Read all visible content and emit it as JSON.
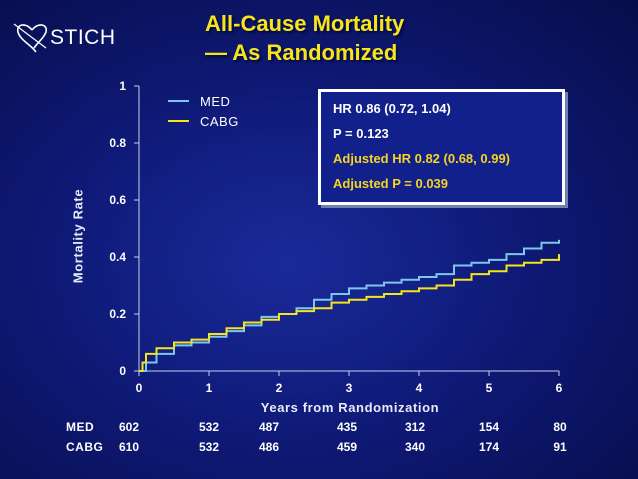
{
  "logo": {
    "text": "STICH"
  },
  "title": {
    "line1": "All-Cause Mortality",
    "line2": "— As Randomized"
  },
  "colors": {
    "med": "#7fc6ee",
    "cabg": "#f5e61c",
    "title": "#f7e51a",
    "adjusted": "#f5d426",
    "axis": "#c8cfe8"
  },
  "stats": {
    "hr": "HR 0.86 (0.72, 1.04)",
    "p": "P = 0.123",
    "adj_hr": "Adjusted HR 0.82 (0.68, 0.99)",
    "adj_p": "Adjusted P = 0.039"
  },
  "risk_table": {
    "rows": [
      {
        "label": "MED",
        "values": [
          "602",
          "532",
          "487",
          "435",
          "312",
          "154",
          "80"
        ]
      },
      {
        "label": "CABG",
        "values": [
          "610",
          "532",
          "486",
          "459",
          "340",
          "174",
          "91"
        ]
      }
    ]
  },
  "chart_data": {
    "type": "line",
    "title": "All-Cause Mortality — As Randomized",
    "xlabel": "Years from Randomization",
    "ylabel": "Mortality Rate",
    "xlim": [
      0,
      6
    ],
    "ylim": [
      0,
      1
    ],
    "x_ticks": [
      "0",
      "1",
      "2",
      "3",
      "4",
      "5",
      "6"
    ],
    "y_ticks": [
      "0",
      "0.2",
      "0.4",
      "0.6",
      "0.8",
      "1"
    ],
    "legend_position": "top-left",
    "series": [
      {
        "name": "MED",
        "x": [
          0,
          0.1,
          0.25,
          0.5,
          0.75,
          1.0,
          1.25,
          1.5,
          1.75,
          2.0,
          2.25,
          2.5,
          2.75,
          3.0,
          3.25,
          3.5,
          3.75,
          4.0,
          4.25,
          4.5,
          4.75,
          5.0,
          5.25,
          5.5,
          5.75,
          6.0
        ],
        "values": [
          0,
          0.03,
          0.06,
          0.09,
          0.1,
          0.12,
          0.14,
          0.16,
          0.19,
          0.2,
          0.22,
          0.25,
          0.27,
          0.29,
          0.3,
          0.31,
          0.32,
          0.33,
          0.34,
          0.37,
          0.38,
          0.39,
          0.41,
          0.43,
          0.45,
          0.46
        ]
      },
      {
        "name": "CABG",
        "x": [
          0,
          0.05,
          0.1,
          0.25,
          0.5,
          0.75,
          1.0,
          1.25,
          1.5,
          1.75,
          2.0,
          2.25,
          2.5,
          2.75,
          3.0,
          3.25,
          3.5,
          3.75,
          4.0,
          4.25,
          4.5,
          4.75,
          5.0,
          5.25,
          5.5,
          5.75,
          6.0
        ],
        "values": [
          0,
          0.03,
          0.06,
          0.08,
          0.1,
          0.11,
          0.13,
          0.15,
          0.17,
          0.18,
          0.2,
          0.21,
          0.22,
          0.24,
          0.25,
          0.26,
          0.27,
          0.28,
          0.29,
          0.3,
          0.32,
          0.34,
          0.35,
          0.37,
          0.38,
          0.39,
          0.41
        ]
      }
    ]
  }
}
